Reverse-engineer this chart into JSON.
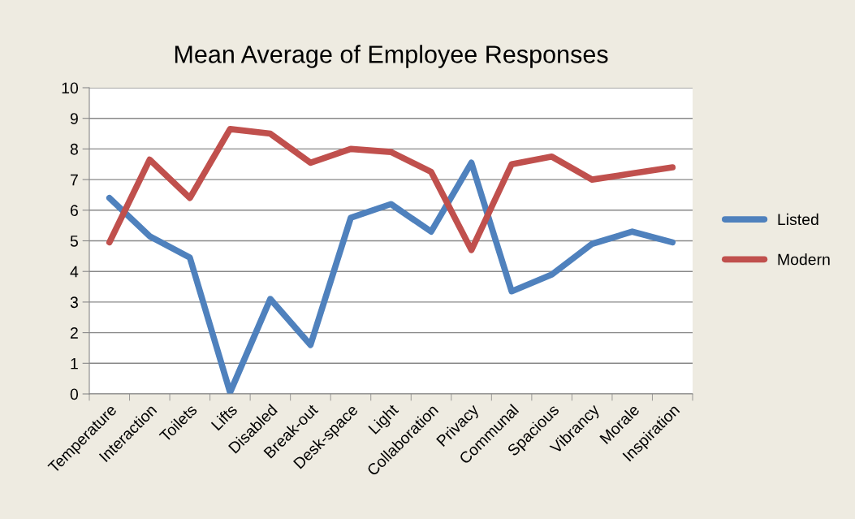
{
  "chart_data": {
    "type": "line",
    "title": "Mean Average of Employee Responses",
    "categories": [
      "Temperature",
      "Interaction",
      "Toilets",
      "Lifts",
      "Disabled",
      "Break-out",
      "Desk-space",
      "Light",
      "Collaboration",
      "Privacy",
      "Communal",
      "Spacious",
      "Vibrancy",
      "Morale",
      "Inspiration"
    ],
    "series": [
      {
        "name": "Listed",
        "color": "#4f81bd",
        "values": [
          6.4,
          5.15,
          4.45,
          0.05,
          3.1,
          1.6,
          5.75,
          6.2,
          5.3,
          7.55,
          3.35,
          3.9,
          4.9,
          5.3,
          4.95
        ]
      },
      {
        "name": "Modern",
        "color": "#c0504d",
        "values": [
          4.95,
          7.65,
          6.4,
          8.65,
          8.5,
          7.55,
          8.0,
          7.9,
          7.25,
          4.7,
          7.5,
          7.75,
          7.0,
          7.2,
          7.4
        ]
      }
    ],
    "ylim": [
      0,
      10
    ],
    "yticks": [
      0,
      1,
      2,
      3,
      4,
      5,
      6,
      7,
      8,
      9,
      10
    ],
    "grid": "y",
    "legend": "right",
    "marker": "none",
    "line_style": "solid"
  }
}
